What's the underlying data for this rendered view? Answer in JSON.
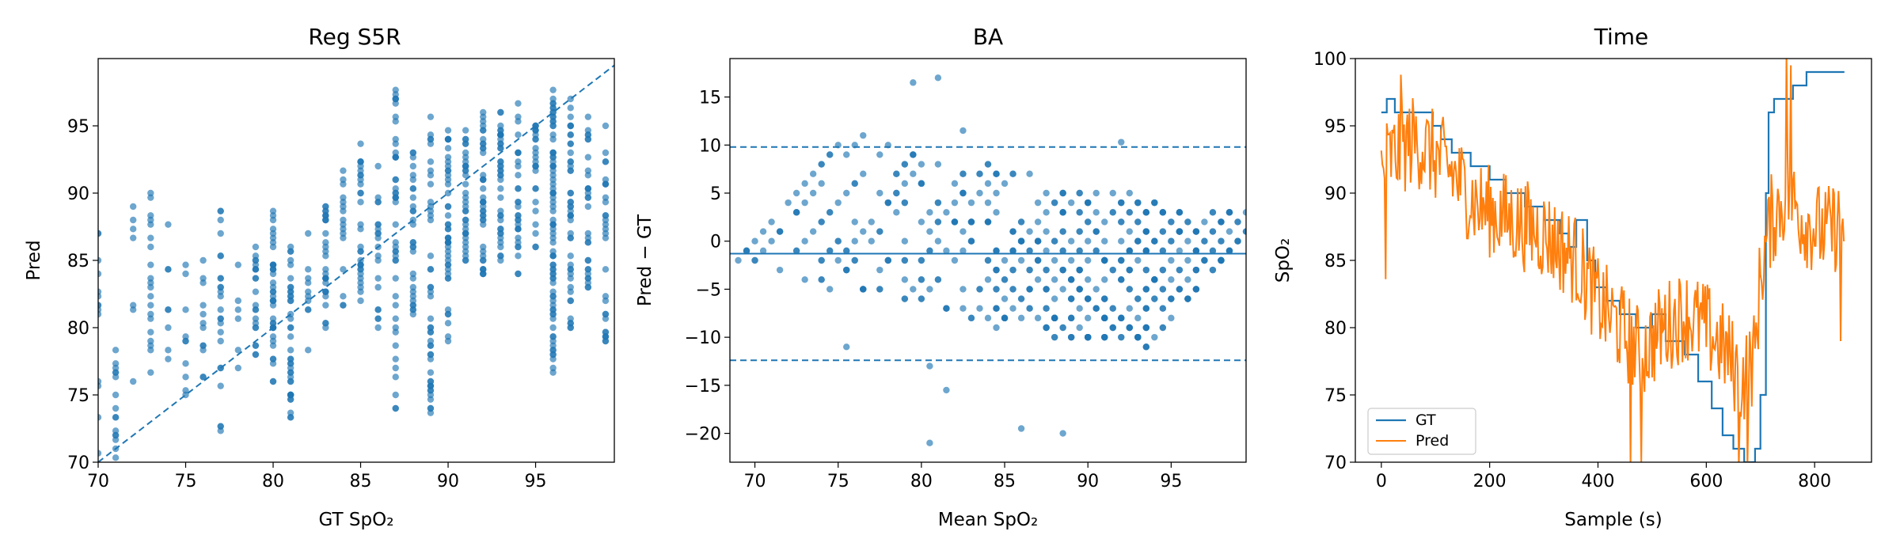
{
  "colors": {
    "blue": "#1f77b4",
    "orange": "#ff7f0e"
  },
  "chart_data": [
    {
      "type": "scatter",
      "title": "Reg S5R",
      "xlabel": "GT SpO₂",
      "ylabel": "Pred",
      "xlim": [
        70,
        99.5
      ],
      "ylim": [
        70,
        100
      ],
      "xticks": [
        "70",
        "75",
        "80",
        "85",
        "90",
        "95"
      ],
      "yticks": [
        "70",
        "75",
        "80",
        "85",
        "90",
        "95"
      ],
      "identity_line": {
        "style": "dashed",
        "from": [
          70,
          70
        ],
        "to": [
          99.5,
          99.5
        ]
      },
      "marker_alpha": 0.65,
      "columns": [
        {
          "x": 70,
          "y_min": 70.5,
          "y_max": 87.0,
          "n": 14
        },
        {
          "x": 71,
          "y_min": 70.2,
          "y_max": 78.4,
          "n": 16
        },
        {
          "x": 72,
          "y_min": 76.0,
          "y_max": 89.0,
          "n": 7
        },
        {
          "x": 73,
          "y_min": 76.7,
          "y_max": 90.0,
          "n": 20
        },
        {
          "x": 74,
          "y_min": 77.5,
          "y_max": 87.5,
          "n": 8
        },
        {
          "x": 75,
          "y_min": 75.0,
          "y_max": 84.7,
          "n": 10
        },
        {
          "x": 76,
          "y_min": 76.3,
          "y_max": 85.0,
          "n": 12
        },
        {
          "x": 77,
          "y_min": 72.4,
          "y_max": 88.6,
          "n": 24
        },
        {
          "x": 78,
          "y_min": 77.0,
          "y_max": 84.5,
          "n": 6
        },
        {
          "x": 79,
          "y_min": 78.0,
          "y_max": 86.0,
          "n": 22
        },
        {
          "x": 80,
          "y_min": 76.0,
          "y_max": 88.5,
          "n": 40
        },
        {
          "x": 81,
          "y_min": 73.3,
          "y_max": 86.0,
          "n": 40
        },
        {
          "x": 82,
          "y_min": 78.2,
          "y_max": 87.0,
          "n": 10
        },
        {
          "x": 83,
          "y_min": 80.0,
          "y_max": 89.0,
          "n": 30
        },
        {
          "x": 84,
          "y_min": 81.5,
          "y_max": 91.5,
          "n": 16
        },
        {
          "x": 85,
          "y_min": 82.0,
          "y_max": 93.5,
          "n": 30
        },
        {
          "x": 86,
          "y_min": 80.0,
          "y_max": 92.0,
          "n": 20
        },
        {
          "x": 87,
          "y_min": 74.0,
          "y_max": 97.5,
          "n": 45
        },
        {
          "x": 88,
          "y_min": 81.0,
          "y_max": 93.0,
          "n": 30
        },
        {
          "x": 89,
          "y_min": 73.8,
          "y_max": 95.7,
          "n": 45
        },
        {
          "x": 90,
          "y_min": 79.0,
          "y_max": 94.5,
          "n": 45
        },
        {
          "x": 91,
          "y_min": 85.0,
          "y_max": 94.5,
          "n": 35
        },
        {
          "x": 92,
          "y_min": 84.0,
          "y_max": 96.0,
          "n": 40
        },
        {
          "x": 93,
          "y_min": 85.0,
          "y_max": 96.0,
          "n": 40
        },
        {
          "x": 94,
          "y_min": 84.0,
          "y_max": 96.5,
          "n": 30
        },
        {
          "x": 95,
          "y_min": 86.0,
          "y_max": 95.0,
          "n": 25
        },
        {
          "x": 96,
          "y_min": 76.5,
          "y_max": 97.5,
          "n": 80
        },
        {
          "x": 97,
          "y_min": 80.0,
          "y_max": 97.0,
          "n": 45
        },
        {
          "x": 98,
          "y_min": 83.0,
          "y_max": 95.5,
          "n": 30
        },
        {
          "x": 99,
          "y_min": 79.0,
          "y_max": 95.0,
          "n": 30
        }
      ]
    },
    {
      "type": "scatter",
      "title": "BA",
      "xlabel": "Mean SpO₂",
      "ylabel": "Pred − GT",
      "xlim": [
        68.5,
        99.5
      ],
      "ylim": [
        -23,
        19
      ],
      "xticks": [
        "70",
        "75",
        "80",
        "85",
        "90",
        "95"
      ],
      "yticks": [
        "−20",
        "−15",
        "−10",
        "−5",
        "0",
        "5",
        "10",
        "15"
      ],
      "hlines": [
        {
          "name": "mean bias",
          "y": -1.3,
          "style": "solid"
        },
        {
          "name": "upper limit",
          "y": 9.8,
          "style": "dashed"
        },
        {
          "name": "lower limit",
          "y": -12.4,
          "style": "dashed"
        }
      ],
      "marker_alpha": 0.65,
      "gt_values": [
        70,
        71,
        73,
        75,
        76,
        77,
        79,
        80,
        81,
        82,
        83,
        85,
        86,
        87,
        88,
        89,
        90,
        91,
        92,
        93,
        94,
        95,
        96,
        97,
        98,
        99
      ],
      "outliers": [
        {
          "x": 80.5,
          "y": -21.0
        },
        {
          "x": 81.5,
          "y": -15.5
        },
        {
          "x": 80.5,
          "y": -13.0
        },
        {
          "x": 75.5,
          "y": -11.0
        },
        {
          "x": 86.0,
          "y": -19.5
        },
        {
          "x": 88.5,
          "y": -20.0
        },
        {
          "x": 79.5,
          "y": 16.5
        },
        {
          "x": 81.0,
          "y": 17.0
        },
        {
          "x": 82.5,
          "y": 11.5
        },
        {
          "x": 92.0,
          "y": 10.3
        }
      ]
    },
    {
      "type": "line",
      "title": "Time",
      "xlabel": "Sample (s)",
      "ylabel": "SpO₂",
      "xlim": [
        -48,
        905
      ],
      "ylim": [
        70,
        100
      ],
      "xticks": [
        "0",
        "200",
        "400",
        "600",
        "800"
      ],
      "yticks": [
        "70",
        "75",
        "80",
        "85",
        "90",
        "95",
        "100"
      ],
      "legend": {
        "position": "lower-left",
        "entries": [
          "GT",
          "Pred"
        ]
      },
      "series": [
        {
          "name": "GT",
          "color": "blue",
          "steps": [
            [
              0,
              96
            ],
            [
              10,
              97
            ],
            [
              25,
              96
            ],
            [
              95,
              95
            ],
            [
              110,
              94
            ],
            [
              130,
              93
            ],
            [
              165,
              92
            ],
            [
              200,
              91
            ],
            [
              230,
              90
            ],
            [
              265,
              89
            ],
            [
              300,
              88
            ],
            [
              330,
              87
            ],
            [
              345,
              86
            ],
            [
              360,
              88
            ],
            [
              380,
              85
            ],
            [
              395,
              83
            ],
            [
              415,
              82
            ],
            [
              440,
              81
            ],
            [
              470,
              80
            ],
            [
              500,
              81
            ],
            [
              525,
              79
            ],
            [
              560,
              78
            ],
            [
              585,
              76
            ],
            [
              610,
              74
            ],
            [
              630,
              72
            ],
            [
              650,
              71
            ],
            [
              670,
              70
            ],
            [
              690,
              71
            ],
            [
              700,
              75
            ],
            [
              710,
              90
            ],
            [
              715,
              96
            ],
            [
              725,
              97
            ],
            [
              760,
              98
            ],
            [
              785,
              99
            ],
            [
              855,
              99
            ]
          ]
        },
        {
          "name": "Pred",
          "color": "orange",
          "trend": [
            [
              0,
              92
            ],
            [
              60,
              94
            ],
            [
              120,
              92
            ],
            [
              180,
              89
            ],
            [
              240,
              88
            ],
            [
              300,
              87
            ],
            [
              360,
              85
            ],
            [
              400,
              82
            ],
            [
              440,
              80
            ],
            [
              480,
              78
            ],
            [
              520,
              80
            ],
            [
              560,
              81
            ],
            [
              600,
              80
            ],
            [
              640,
              78
            ],
            [
              665,
              76
            ],
            [
              690,
              78
            ],
            [
              700,
              84
            ],
            [
              720,
              88
            ],
            [
              750,
              90
            ],
            [
              780,
              88
            ],
            [
              820,
              87
            ],
            [
              855,
              88
            ]
          ],
          "noise_amplitude": 3.5,
          "spikes": [
            {
              "x": 8,
              "y": 83.6
            },
            {
              "x": 35,
              "y": 98.8
            },
            {
              "x": 460,
              "y": 69.5
            },
            {
              "x": 480,
              "y": 70.0
            },
            {
              "x": 660,
              "y": 69.5
            },
            {
              "x": 676,
              "y": 69.5
            },
            {
              "x": 748,
              "y": 100.5
            },
            {
              "x": 755,
              "y": 99.5
            },
            {
              "x": 848,
              "y": 79.0
            }
          ]
        }
      ]
    }
  ]
}
